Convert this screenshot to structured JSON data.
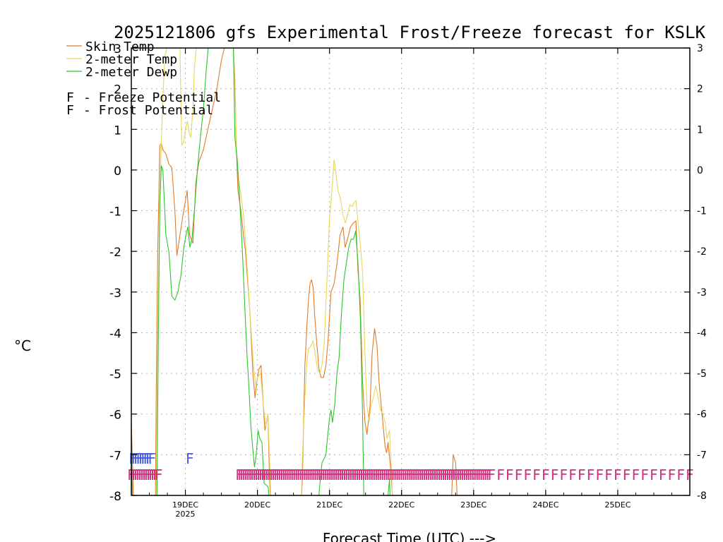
{
  "chart_data": {
    "type": "line",
    "title": "2025121806 gfs Experimental Frost/Freeze forecast for KSLK",
    "ylabel": "°C",
    "xlabel": "Forecast Time (UTC) --->",
    "ylim": [
      -8,
      3
    ],
    "xlim": [
      0,
      186
    ],
    "y_ticks": [
      "-8",
      "-7",
      "-6",
      "-5",
      "-4",
      "-3",
      "-2",
      "-1",
      "0",
      "1",
      "2",
      "3"
    ],
    "x_ticks": [
      {
        "x": 18,
        "label": "19DEC",
        "sublabel": "2025"
      },
      {
        "x": 42,
        "label": "20DEC",
        "sublabel": ""
      },
      {
        "x": 66,
        "label": "21DEC",
        "sublabel": ""
      },
      {
        "x": 90,
        "label": "22DEC",
        "sublabel": ""
      },
      {
        "x": 114,
        "label": "23DEC",
        "sublabel": ""
      },
      {
        "x": 138,
        "label": "24DEC",
        "sublabel": ""
      },
      {
        "x": 162,
        "label": "25DEC",
        "sublabel": ""
      }
    ],
    "series": [
      {
        "name": "Skin Temp",
        "color": "#e07b2a",
        "points": [
          [
            0,
            -6.2
          ],
          [
            0.6,
            -7.8
          ],
          [
            0.8,
            -8.4
          ],
          [
            8.0,
            -8.4
          ],
          [
            8.3,
            -5.5
          ],
          [
            8.8,
            -2.0
          ],
          [
            9.5,
            0.6
          ],
          [
            10,
            0.65
          ],
          [
            10.5,
            0.5
          ],
          [
            11.5,
            0.4
          ],
          [
            12.5,
            0.15
          ],
          [
            13.5,
            0.05
          ],
          [
            14.5,
            -1.0
          ],
          [
            15.2,
            -2.1
          ],
          [
            16,
            -1.7
          ],
          [
            17,
            -1.2
          ],
          [
            18.6,
            -0.5
          ],
          [
            19.4,
            -1.6
          ],
          [
            20.5,
            -1.8
          ],
          [
            21.5,
            -0.3
          ],
          [
            22.5,
            0.2
          ],
          [
            24,
            0.5
          ],
          [
            25.5,
            1.0
          ],
          [
            27,
            1.5
          ],
          [
            28.5,
            2.0
          ],
          [
            30,
            2.7
          ],
          [
            31,
            3.0
          ],
          [
            34,
            3.0
          ],
          [
            34.5,
            2.2
          ],
          [
            35,
            0.5
          ],
          [
            35.5,
            -0.5
          ],
          [
            36.5,
            -1.0
          ],
          [
            37.2,
            -1.5
          ],
          [
            38,
            -2.0
          ],
          [
            39.5,
            -3.5
          ],
          [
            40.5,
            -5.0
          ],
          [
            41.2,
            -5.6
          ],
          [
            41.8,
            -5.2
          ],
          [
            42.5,
            -4.9
          ],
          [
            43.2,
            -4.8
          ],
          [
            43.8,
            -5.6
          ],
          [
            44.5,
            -6.4
          ],
          [
            45.5,
            -6.0
          ],
          [
            46,
            -7.5
          ],
          [
            46.6,
            -8.4
          ],
          [
            56.5,
            -8.4
          ],
          [
            57,
            -7.5
          ],
          [
            57.8,
            -4.8
          ],
          [
            58.5,
            -3.8
          ],
          [
            59,
            -3.2
          ],
          [
            59.5,
            -2.8
          ],
          [
            60,
            -2.7
          ],
          [
            60.6,
            -2.9
          ],
          [
            61,
            -3.5
          ],
          [
            61.8,
            -4.3
          ],
          [
            62.5,
            -4.9
          ],
          [
            63.2,
            -5.1
          ],
          [
            64,
            -5.1
          ],
          [
            64.8,
            -4.8
          ],
          [
            65.5,
            -4.2
          ],
          [
            66.5,
            -3.0
          ],
          [
            67.5,
            -2.8
          ],
          [
            68.5,
            -2.3
          ],
          [
            69.5,
            -1.6
          ],
          [
            70.5,
            -1.4
          ],
          [
            71.2,
            -1.9
          ],
          [
            72,
            -1.7
          ],
          [
            73,
            -1.4
          ],
          [
            74,
            -1.3
          ],
          [
            74.8,
            -1.25
          ],
          [
            75.5,
            -2.5
          ],
          [
            76.2,
            -3.2
          ],
          [
            77,
            -5.2
          ],
          [
            77.8,
            -6.2
          ],
          [
            78.5,
            -6.5
          ],
          [
            79.5,
            -5.8
          ],
          [
            80.2,
            -4.5
          ],
          [
            81,
            -3.9
          ],
          [
            81.8,
            -4.3
          ],
          [
            82.5,
            -5.2
          ],
          [
            83.5,
            -6.0
          ],
          [
            84.5,
            -6.8
          ],
          [
            85,
            -6.95
          ],
          [
            85.5,
            -6.7
          ],
          [
            86.2,
            -7.2
          ],
          [
            86.8,
            -7.8
          ],
          [
            87.3,
            -8.4
          ],
          [
            106.5,
            -8.4
          ],
          [
            107.2,
            -7.0
          ],
          [
            108,
            -7.2
          ],
          [
            108.5,
            -8.0
          ],
          [
            109,
            -8.4
          ],
          [
            186,
            -8.4
          ]
        ]
      },
      {
        "name": "2-meter Temp",
        "color": "#e8d65c",
        "points": [
          [
            0,
            -7.0
          ],
          [
            0.6,
            -8.4
          ],
          [
            8.2,
            -8.4
          ],
          [
            8.5,
            -6.0
          ],
          [
            9.0,
            -3.0
          ],
          [
            9.7,
            0.0
          ],
          [
            10.5,
            1.8
          ],
          [
            11.2,
            2.8
          ],
          [
            11.8,
            3.0
          ],
          [
            16.2,
            3.0
          ],
          [
            16.8,
            0.6
          ],
          [
            17.5,
            0.7
          ],
          [
            18,
            1.0
          ],
          [
            18.7,
            1.2
          ],
          [
            19.3,
            0.9
          ],
          [
            19.8,
            0.8
          ],
          [
            20.5,
            1.5
          ],
          [
            21,
            2.5
          ],
          [
            21.6,
            3.0
          ],
          [
            34,
            3.0
          ],
          [
            34.5,
            2.0
          ],
          [
            35,
            0.6
          ],
          [
            35.8,
            -0.3
          ],
          [
            36.5,
            -0.6
          ],
          [
            37.5,
            -1.2
          ],
          [
            38.5,
            -2.3
          ],
          [
            39.5,
            -3.5
          ],
          [
            40.2,
            -4.3
          ],
          [
            40.8,
            -4.9
          ],
          [
            41.5,
            -5.3
          ],
          [
            42,
            -5.1
          ],
          [
            43,
            -5.0
          ],
          [
            44,
            -5.8
          ],
          [
            44.8,
            -6.3
          ],
          [
            45.5,
            -6.0
          ],
          [
            46,
            -7.0
          ],
          [
            46.6,
            -8.4
          ],
          [
            56.5,
            -8.4
          ],
          [
            57,
            -7.0
          ],
          [
            57.8,
            -5.6
          ],
          [
            58.5,
            -4.7
          ],
          [
            59,
            -4.4
          ],
          [
            60,
            -4.3
          ],
          [
            60.5,
            -4.2
          ],
          [
            61.2,
            -4.5
          ],
          [
            62,
            -4.9
          ],
          [
            62.8,
            -5.0
          ],
          [
            63.5,
            -4.8
          ],
          [
            64.2,
            -4.3
          ],
          [
            65,
            -3.0
          ],
          [
            66,
            -1.2
          ],
          [
            66.8,
            -0.5
          ],
          [
            67.5,
            0.25
          ],
          [
            68,
            0.0
          ],
          [
            68.8,
            -0.5
          ],
          [
            69.6,
            -0.7
          ],
          [
            70.5,
            -1.1
          ],
          [
            71.3,
            -1.3
          ],
          [
            72,
            -1.1
          ],
          [
            72.8,
            -0.85
          ],
          [
            73.6,
            -0.9
          ],
          [
            74.2,
            -0.8
          ],
          [
            74.8,
            -0.75
          ],
          [
            75.5,
            -1.3
          ],
          [
            76.2,
            -1.8
          ],
          [
            77,
            -2.5
          ],
          [
            77.8,
            -4.5
          ],
          [
            78.5,
            -5.8
          ],
          [
            79.2,
            -6.2
          ],
          [
            79.8,
            -5.8
          ],
          [
            80.6,
            -5.6
          ],
          [
            81.4,
            -5.3
          ],
          [
            82.2,
            -5.6
          ],
          [
            83,
            -5.9
          ],
          [
            83.8,
            -6.0
          ],
          [
            84.5,
            -6.2
          ],
          [
            85.2,
            -6.6
          ],
          [
            86,
            -6.4
          ],
          [
            86.7,
            -7.5
          ],
          [
            87.2,
            -8.4
          ],
          [
            106.5,
            -8.4
          ],
          [
            107.2,
            -8.4
          ],
          [
            186,
            -8.4
          ]
        ]
      },
      {
        "name": "2-meter Dewp",
        "color": "#2fc42f",
        "points": [
          [
            0,
            -7.0
          ],
          [
            0.5,
            -8.4
          ],
          [
            8.5,
            -8.4
          ],
          [
            9.0,
            -4.0
          ],
          [
            9.5,
            -0.8
          ],
          [
            10,
            0.1
          ],
          [
            10.5,
            0.0
          ],
          [
            11,
            -0.8
          ],
          [
            11.5,
            -1.6
          ],
          [
            12.5,
            -2.0
          ],
          [
            13.5,
            -3.1
          ],
          [
            14.5,
            -3.2
          ],
          [
            15.5,
            -3.0
          ],
          [
            16.5,
            -2.6
          ],
          [
            17.5,
            -1.9
          ],
          [
            18.2,
            -1.6
          ],
          [
            18.8,
            -1.4
          ],
          [
            19.5,
            -1.9
          ],
          [
            20.2,
            -1.7
          ],
          [
            21,
            -1.0
          ],
          [
            22,
            0.0
          ],
          [
            23,
            0.8
          ],
          [
            24,
            1.5
          ],
          [
            25,
            2.5
          ],
          [
            25.6,
            3.0
          ],
          [
            34,
            3.0
          ],
          [
            34.5,
            0.8
          ],
          [
            35.3,
            0.2
          ],
          [
            36,
            -0.6
          ],
          [
            37,
            -2.0
          ],
          [
            37.8,
            -3.4
          ],
          [
            38.5,
            -4.5
          ],
          [
            39.2,
            -5.4
          ],
          [
            39.8,
            -6.3
          ],
          [
            40.5,
            -6.9
          ],
          [
            41,
            -7.3
          ],
          [
            41.6,
            -7.0
          ],
          [
            42.2,
            -6.4
          ],
          [
            42.8,
            -6.6
          ],
          [
            43.5,
            -6.7
          ],
          [
            44.2,
            -7.7
          ],
          [
            45,
            -7.75
          ],
          [
            45.6,
            -7.8
          ],
          [
            46.2,
            -8.4
          ],
          [
            62,
            -8.4
          ],
          [
            62.7,
            -7.8
          ],
          [
            63.5,
            -7.2
          ],
          [
            64.2,
            -7.1
          ],
          [
            64.8,
            -7.0
          ],
          [
            65.3,
            -6.6
          ],
          [
            66,
            -6.1
          ],
          [
            66.5,
            -5.9
          ],
          [
            67,
            -6.2
          ],
          [
            67.7,
            -5.8
          ],
          [
            68.5,
            -5.0
          ],
          [
            69.2,
            -4.6
          ],
          [
            70,
            -3.5
          ],
          [
            70.8,
            -2.7
          ],
          [
            71.6,
            -2.3
          ],
          [
            72.4,
            -1.9
          ],
          [
            73.2,
            -1.7
          ],
          [
            74,
            -1.7
          ],
          [
            74.7,
            -1.5
          ],
          [
            75.5,
            -2.3
          ],
          [
            76.3,
            -3.7
          ],
          [
            77,
            -6.0
          ],
          [
            77.5,
            -8.4
          ],
          [
            85,
            -8.4
          ],
          [
            86,
            -7.6
          ],
          [
            86.3,
            -8.4
          ],
          [
            186,
            -8.4
          ]
        ]
      }
    ],
    "legend": [
      {
        "label": "Skin Temp",
        "color": "#e07b2a"
      },
      {
        "label": "2-meter Temp",
        "color": "#e8d65c"
      },
      {
        "label": "2-meter Dewp",
        "color": "#2fc42f"
      }
    ],
    "potential_legend": [
      {
        "marker": "F",
        "label": "- Freeze Potential",
        "color": "#d0307e"
      },
      {
        "marker": "F",
        "label": "- Frost Potential",
        "color": "#4a5dd8"
      }
    ],
    "freeze_potential_hours": [
      0.0,
      0.7,
      1.4,
      2.1,
      2.8,
      3.5,
      4.2,
      4.9,
      5.6,
      6.3,
      7.0,
      7.7,
      8.4,
      9.1,
      36.0,
      36.7,
      37.4,
      38.1,
      38.8,
      39.5,
      40.2,
      40.9,
      41.6,
      42.3,
      43.0,
      43.7,
      44.4,
      45.1,
      45.8,
      46.5,
      47.2,
      47.9,
      48.6,
      49.3,
      50.0,
      50.7,
      51.4,
      52.1,
      52.8,
      53.5,
      54.2,
      54.9,
      55.6,
      56.3,
      57.0,
      57.7,
      58.4,
      59.1,
      59.8,
      60.5,
      61.2,
      61.9,
      62.6,
      63.3,
      64.0,
      64.7,
      65.4,
      66.1,
      66.8,
      67.5,
      68.2,
      68.9,
      69.6,
      70.3,
      71.0,
      71.7,
      72.4,
      73.1,
      73.8,
      74.5,
      75.2,
      75.9,
      76.6,
      77.3,
      78.0,
      78.7,
      79.4,
      80.1,
      80.8,
      81.5,
      82.2,
      82.9,
      83.6,
      84.3,
      85.0,
      85.7,
      86.4,
      87.1,
      87.8,
      88.5,
      89.2,
      89.9,
      90.6,
      91.3,
      92.0,
      92.7,
      93.4,
      94.1,
      94.8,
      95.5,
      96.2,
      96.9,
      97.6,
      98.3,
      99.0,
      99.7,
      100.4,
      101.1,
      101.8,
      102.5,
      103.2,
      103.9,
      104.6,
      105.3,
      106.0,
      106.7,
      107.4,
      108.1,
      108.8,
      109.5,
      110.2,
      110.9,
      111.6,
      112.3,
      113.0,
      113.7,
      114.4,
      115.1,
      115.8,
      116.5,
      117.2,
      117.9,
      118.6,
      119.3,
      120.0,
      123.0,
      126.0,
      129.0,
      132.0,
      135.0,
      138.0,
      141.0,
      144.0,
      147.0,
      150.0,
      153.0,
      156.0,
      159.0,
      162.0,
      165.0,
      168.0,
      171.0,
      174.0,
      177.0,
      180.0,
      183.0,
      186.0
    ],
    "frost_potential_hours": [
      0.5,
      1.3,
      2.1,
      2.9,
      3.7,
      4.5,
      5.3,
      6.1,
      6.9,
      19.5
    ]
  }
}
